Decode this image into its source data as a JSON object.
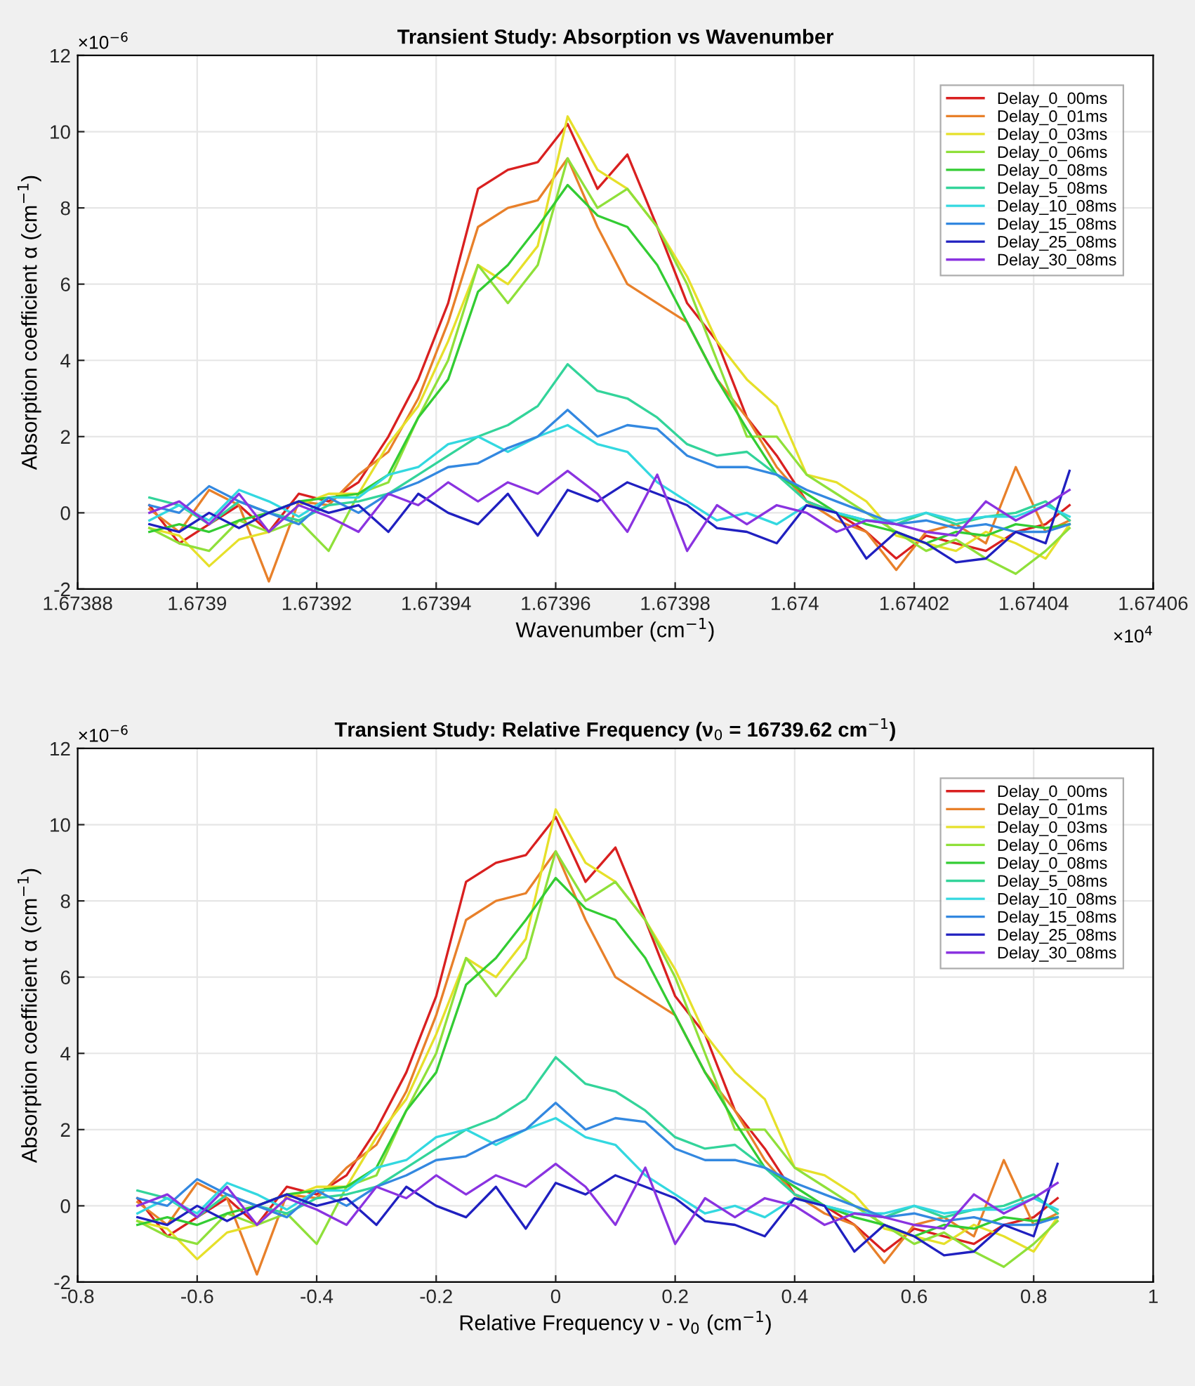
{
  "chart_data": [
    {
      "type": "line",
      "title": "Transient Study: Absorption vs Wavenumber",
      "xlabel": "Wavenumber (cm$^{−1}$)",
      "ylabel": "Absorption coefficient α (cm$^{−1}$)",
      "annotations": [
        "×10$^{−6}$",
        "×10$^{4}$"
      ],
      "x": [
        1.673892,
        1.673897,
        1.673902,
        1.673907,
        1.673912,
        1.673917,
        1.673922,
        1.673927,
        1.673932,
        1.673937,
        1.673942,
        1.673947,
        1.673952,
        1.673957,
        1.673962,
        1.673967,
        1.673972,
        1.673977,
        1.673982,
        1.673987,
        1.673992,
        1.673997,
        1.674002,
        1.674007,
        1.674012,
        1.674017,
        1.674022,
        1.674027,
        1.674032,
        1.674037,
        1.674042,
        1.674046
      ],
      "xlim": [
        1.67388,
        1.67406
      ],
      "xticks": [
        1.67388,
        1.6739,
        1.67392,
        1.67394,
        1.67396,
        1.67398,
        1.674,
        1.67402,
        1.67404,
        1.67406
      ],
      "ylim": [
        -2,
        12
      ],
      "yticks": [
        -2,
        0,
        2,
        4,
        6,
        8,
        10,
        12
      ],
      "grid": true,
      "legend": "top right",
      "series": [
        {
          "name": "Delay_0_00ms",
          "color": "#d92020",
          "values": [
            0.2,
            -0.8,
            -0.3,
            0.2,
            -0.5,
            0.5,
            0.3,
            0.8,
            2.0,
            3.5,
            5.5,
            8.5,
            9.0,
            9.2,
            10.2,
            8.5,
            9.4,
            7.5,
            5.5,
            4.5,
            2.5,
            1.5,
            0.3,
            0,
            -0.5,
            -1.2,
            -0.6,
            -0.8,
            -1.0,
            -0.5,
            -0.3,
            0.2
          ]
        },
        {
          "name": "Delay_0_01ms",
          "color": "#e8802a",
          "values": [
            0.1,
            -0.5,
            0.6,
            0.2,
            -1.8,
            0.3,
            0.2,
            1.0,
            1.6,
            3.0,
            5.0,
            7.5,
            8.0,
            8.2,
            9.3,
            7.5,
            6.0,
            5.5,
            5.0,
            3.5,
            2.5,
            1.2,
            0.3,
            -0.2,
            -0.5,
            -1.5,
            -0.5,
            -0.3,
            -0.8,
            1.2,
            -0.5,
            -0.2
          ]
        },
        {
          "name": "Delay_0_03ms",
          "color": "#e6e02a",
          "values": [
            -0.4,
            -0.6,
            -1.4,
            -0.7,
            -0.5,
            0.2,
            0.5,
            0.5,
            1.8,
            2.8,
            4.5,
            6.5,
            6.0,
            7.0,
            10.4,
            9.0,
            8.5,
            7.5,
            6.2,
            4.5,
            3.5,
            2.8,
            1.0,
            0.8,
            0.3,
            -0.6,
            -0.8,
            -1.0,
            -0.5,
            -0.8,
            -1.2,
            -0.3
          ]
        },
        {
          "name": "Delay_0_06ms",
          "color": "#8fe03a",
          "values": [
            -0.4,
            -0.8,
            -1.0,
            -0.2,
            -0.5,
            -0.2,
            -1.0,
            0.5,
            0.8,
            2.5,
            4.0,
            6.5,
            5.5,
            6.5,
            9.3,
            8.0,
            8.5,
            7.5,
            6.0,
            4.0,
            2.0,
            2.0,
            1.0,
            0.5,
            0.0,
            -0.5,
            -1.0,
            -0.7,
            -1.2,
            -1.6,
            -1.0,
            -0.4
          ]
        },
        {
          "name": "Delay_0_08ms",
          "color": "#33cc33",
          "values": [
            -0.5,
            -0.3,
            -0.5,
            -0.2,
            0.0,
            0.3,
            0.4,
            0.5,
            1.0,
            2.5,
            3.5,
            5.8,
            6.5,
            7.5,
            8.6,
            7.8,
            7.5,
            6.5,
            5.0,
            3.5,
            2.2,
            1.0,
            0.5,
            0.0,
            -0.3,
            -0.5,
            -0.8,
            -0.5,
            -0.6,
            -0.3,
            -0.4,
            -0.3
          ]
        },
        {
          "name": "Delay_5_08ms",
          "color": "#33d49a",
          "values": [
            0.4,
            0.2,
            -0.3,
            0.3,
            0.0,
            -0.2,
            0.2,
            0.3,
            0.5,
            1.0,
            1.5,
            2.0,
            2.3,
            2.8,
            3.9,
            3.2,
            3.0,
            2.5,
            1.8,
            1.5,
            1.6,
            1.0,
            0.3,
            0.0,
            -0.2,
            -0.3,
            0.0,
            -0.3,
            -0.1,
            0.0,
            0.3,
            -0.2
          ]
        },
        {
          "name": "Delay_10_08ms",
          "color": "#33d8e0",
          "values": [
            -0.2,
            0.2,
            -0.2,
            0.6,
            0.3,
            -0.1,
            0.4,
            0.4,
            1.0,
            1.2,
            1.8,
            2.0,
            1.6,
            2.0,
            2.3,
            1.8,
            1.6,
            0.8,
            0.3,
            -0.2,
            0.0,
            -0.3,
            0.2,
            0.0,
            -0.2,
            -0.2,
            0.0,
            -0.2,
            -0.1,
            -0.1,
            0.2,
            -0.1
          ]
        },
        {
          "name": "Delay_15_08ms",
          "color": "#3388e0",
          "values": [
            0.2,
            0.0,
            0.7,
            0.3,
            0.0,
            -0.3,
            0.4,
            0.0,
            0.5,
            0.8,
            1.2,
            1.3,
            1.7,
            2.0,
            2.7,
            2.0,
            2.3,
            2.2,
            1.5,
            1.2,
            1.2,
            1.0,
            0.6,
            0.3,
            0.0,
            -0.3,
            -0.2,
            -0.4,
            -0.3,
            -0.5,
            -0.5,
            -0.3
          ]
        },
        {
          "name": "Delay_25_08ms",
          "color": "#2020c0",
          "values": [
            -0.3,
            -0.5,
            0.0,
            -0.4,
            0.0,
            0.3,
            0.0,
            0.2,
            -0.5,
            0.5,
            0.0,
            -0.3,
            0.5,
            -0.6,
            0.6,
            0.3,
            0.8,
            0.5,
            0.2,
            -0.4,
            -0.5,
            -0.8,
            0.2,
            0.0,
            -1.2,
            -0.5,
            -0.8,
            -1.3,
            -1.2,
            -0.5,
            -0.8,
            1.1
          ]
        },
        {
          "name": "Delay_30_08ms",
          "color": "#8a33e0",
          "values": [
            0.0,
            0.3,
            -0.3,
            0.5,
            -0.5,
            0.2,
            -0.1,
            -0.5,
            0.5,
            0.2,
            0.8,
            0.3,
            0.8,
            0.5,
            1.1,
            0.5,
            -0.5,
            1.0,
            -1.0,
            0.2,
            -0.3,
            0.2,
            0.0,
            -0.5,
            -0.2,
            -0.3,
            -0.5,
            -0.6,
            0.3,
            -0.2,
            0.2,
            0.6
          ]
        }
      ]
    },
    {
      "type": "line",
      "title": "Transient Study: Relative Frequency (ν$_{0}$ = 16739.62 cm$^{−1}$)",
      "xlabel": "Relative Frequency ν - ν$_{0}$ (cm$^{−1}$)",
      "ylabel": "Absorption coefficient α (cm$^{−1}$)",
      "annotations": [
        "×10$^{−6}$"
      ],
      "x": [
        -0.7,
        -0.65,
        -0.6,
        -0.55,
        -0.5,
        -0.45,
        -0.4,
        -0.35,
        -0.3,
        -0.25,
        -0.2,
        -0.15,
        -0.1,
        -0.05,
        0,
        0.05,
        0.1,
        0.15,
        0.2,
        0.25,
        0.3,
        0.35,
        0.4,
        0.45,
        0.5,
        0.55,
        0.6,
        0.65,
        0.7,
        0.75,
        0.8,
        0.84
      ],
      "xlim": [
        -0.8,
        1
      ],
      "xticks": [
        -0.8,
        -0.6,
        -0.4,
        -0.2,
        0,
        0.2,
        0.4,
        0.6,
        0.8,
        1
      ],
      "ylim": [
        -2,
        12
      ],
      "yticks": [
        -2,
        0,
        2,
        4,
        6,
        8,
        10,
        12
      ],
      "grid": true,
      "legend": "top right",
      "series": [
        {
          "name": "Delay_0_00ms",
          "color": "#d92020",
          "values": [
            0.2,
            -0.8,
            -0.3,
            0.2,
            -0.5,
            0.5,
            0.3,
            0.8,
            2.0,
            3.5,
            5.5,
            8.5,
            9.0,
            9.2,
            10.2,
            8.5,
            9.4,
            7.5,
            5.5,
            4.5,
            2.5,
            1.5,
            0.3,
            0,
            -0.5,
            -1.2,
            -0.6,
            -0.8,
            -1.0,
            -0.5,
            -0.3,
            0.2
          ]
        },
        {
          "name": "Delay_0_01ms",
          "color": "#e8802a",
          "values": [
            0.1,
            -0.5,
            0.6,
            0.2,
            -1.8,
            0.3,
            0.2,
            1.0,
            1.6,
            3.0,
            5.0,
            7.5,
            8.0,
            8.2,
            9.3,
            7.5,
            6.0,
            5.5,
            5.0,
            3.5,
            2.5,
            1.2,
            0.3,
            -0.2,
            -0.5,
            -1.5,
            -0.5,
            -0.3,
            -0.8,
            1.2,
            -0.5,
            -0.2
          ]
        },
        {
          "name": "Delay_0_03ms",
          "color": "#e6e02a",
          "values": [
            -0.4,
            -0.6,
            -1.4,
            -0.7,
            -0.5,
            0.2,
            0.5,
            0.5,
            1.8,
            2.8,
            4.5,
            6.5,
            6.0,
            7.0,
            10.4,
            9.0,
            8.5,
            7.5,
            6.2,
            4.5,
            3.5,
            2.8,
            1.0,
            0.8,
            0.3,
            -0.6,
            -0.8,
            -1.0,
            -0.5,
            -0.8,
            -1.2,
            -0.3
          ]
        },
        {
          "name": "Delay_0_06ms",
          "color": "#8fe03a",
          "values": [
            -0.4,
            -0.8,
            -1.0,
            -0.2,
            -0.5,
            -0.2,
            -1.0,
            0.5,
            0.8,
            2.5,
            4.0,
            6.5,
            5.5,
            6.5,
            9.3,
            8.0,
            8.5,
            7.5,
            6.0,
            4.0,
            2.0,
            2.0,
            1.0,
            0.5,
            0.0,
            -0.5,
            -1.0,
            -0.7,
            -1.2,
            -1.6,
            -1.0,
            -0.4
          ]
        },
        {
          "name": "Delay_0_08ms",
          "color": "#33cc33",
          "values": [
            -0.5,
            -0.3,
            -0.5,
            -0.2,
            0.0,
            0.3,
            0.4,
            0.5,
            1.0,
            2.5,
            3.5,
            5.8,
            6.5,
            7.5,
            8.6,
            7.8,
            7.5,
            6.5,
            5.0,
            3.5,
            2.2,
            1.0,
            0.5,
            0.0,
            -0.3,
            -0.5,
            -0.8,
            -0.5,
            -0.6,
            -0.3,
            -0.4,
            -0.3
          ]
        },
        {
          "name": "Delay_5_08ms",
          "color": "#33d49a",
          "values": [
            0.4,
            0.2,
            -0.3,
            0.3,
            0.0,
            -0.2,
            0.2,
            0.3,
            0.5,
            1.0,
            1.5,
            2.0,
            2.3,
            2.8,
            3.9,
            3.2,
            3.0,
            2.5,
            1.8,
            1.5,
            1.6,
            1.0,
            0.3,
            0.0,
            -0.2,
            -0.3,
            0.0,
            -0.3,
            -0.1,
            0.0,
            0.3,
            -0.2
          ]
        },
        {
          "name": "Delay_10_08ms",
          "color": "#33d8e0",
          "values": [
            -0.2,
            0.2,
            -0.2,
            0.6,
            0.3,
            -0.1,
            0.4,
            0.4,
            1.0,
            1.2,
            1.8,
            2.0,
            1.6,
            2.0,
            2.3,
            1.8,
            1.6,
            0.8,
            0.3,
            -0.2,
            0.0,
            -0.3,
            0.2,
            0.0,
            -0.2,
            -0.2,
            0.0,
            -0.2,
            -0.1,
            -0.1,
            0.2,
            -0.1
          ]
        },
        {
          "name": "Delay_15_08ms",
          "color": "#3388e0",
          "values": [
            0.2,
            0.0,
            0.7,
            0.3,
            0.0,
            -0.3,
            0.4,
            0.0,
            0.5,
            0.8,
            1.2,
            1.3,
            1.7,
            2.0,
            2.7,
            2.0,
            2.3,
            2.2,
            1.5,
            1.2,
            1.2,
            1.0,
            0.6,
            0.3,
            0.0,
            -0.3,
            -0.2,
            -0.4,
            -0.3,
            -0.5,
            -0.5,
            -0.3
          ]
        },
        {
          "name": "Delay_25_08ms",
          "color": "#2020c0",
          "values": [
            -0.3,
            -0.5,
            0.0,
            -0.4,
            0.0,
            0.3,
            0.0,
            0.2,
            -0.5,
            0.5,
            0.0,
            -0.3,
            0.5,
            -0.6,
            0.6,
            0.3,
            0.8,
            0.5,
            0.2,
            -0.4,
            -0.5,
            -0.8,
            0.2,
            0.0,
            -1.2,
            -0.5,
            -0.8,
            -1.3,
            -1.2,
            -0.5,
            -0.8,
            1.1
          ]
        },
        {
          "name": "Delay_30_08ms",
          "color": "#8a33e0",
          "values": [
            0.0,
            0.3,
            -0.3,
            0.5,
            -0.5,
            0.2,
            -0.1,
            -0.5,
            0.5,
            0.2,
            0.8,
            0.3,
            0.8,
            0.5,
            1.1,
            0.5,
            -0.5,
            1.0,
            -1.0,
            0.2,
            -0.3,
            0.2,
            0.0,
            -0.5,
            -0.2,
            -0.3,
            -0.5,
            -0.6,
            0.3,
            -0.2,
            0.2,
            0.6
          ]
        }
      ]
    }
  ]
}
